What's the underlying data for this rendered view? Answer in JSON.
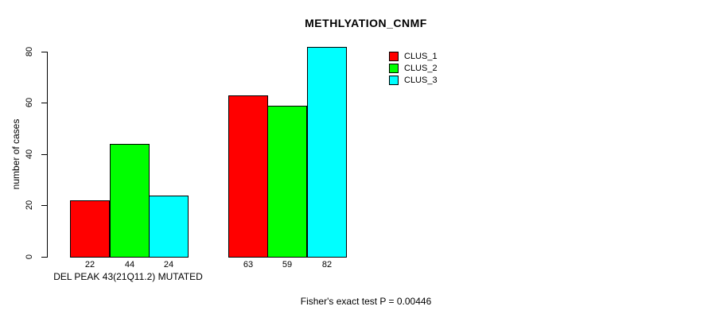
{
  "chart_data": {
    "type": "bar",
    "title": "METHLYATION_CNMF",
    "ylabel": "number of cases",
    "xlabel": "DEL PEAK 43(21Q11.2) MUTATED",
    "annotation": "Fisher's exact test P = 0.00446",
    "ylim": [
      0,
      80
    ],
    "yticks": [
      0,
      20,
      40,
      60,
      80
    ],
    "grid": false,
    "legend_position": "top-right",
    "bar_value_labels_shown": true,
    "n_groups": 2,
    "series": [
      {
        "name": "CLUS_1",
        "color": "#ff0000",
        "values": [
          22,
          63
        ]
      },
      {
        "name": "CLUS_2",
        "color": "#00ff00",
        "values": [
          44,
          59
        ]
      },
      {
        "name": "CLUS_3",
        "color": "#00ffff",
        "values": [
          24,
          82
        ]
      }
    ],
    "colors": {
      "background": "#ffffff",
      "axis": "#000000",
      "bar_border": "#000000",
      "text": "#000000"
    }
  }
}
